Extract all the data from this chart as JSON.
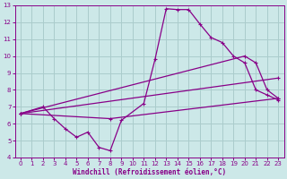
{
  "xlabel": "Windchill (Refroidissement éolien,°C)",
  "xlim": [
    -0.5,
    23.5
  ],
  "ylim": [
    4,
    13
  ],
  "xticks": [
    0,
    1,
    2,
    3,
    4,
    5,
    6,
    7,
    8,
    9,
    10,
    11,
    12,
    13,
    14,
    15,
    16,
    17,
    18,
    19,
    20,
    21,
    22,
    23
  ],
  "yticks": [
    4,
    5,
    6,
    7,
    8,
    9,
    10,
    11,
    12,
    13
  ],
  "background_color": "#cce8e8",
  "grid_color": "#aacccc",
  "line_color": "#880088",
  "lines": [
    {
      "x": [
        0,
        2,
        3,
        4,
        5,
        6,
        7,
        8,
        9,
        11,
        12,
        13,
        14,
        15,
        16,
        17,
        18,
        19,
        20,
        21,
        22,
        23
      ],
      "y": [
        6.6,
        7.0,
        6.3,
        5.7,
        5.2,
        5.5,
        4.6,
        4.4,
        6.2,
        7.2,
        9.8,
        12.8,
        12.75,
        12.75,
        11.9,
        11.1,
        10.8,
        10.0,
        9.6,
        8.0,
        7.7,
        7.4
      ]
    },
    {
      "x": [
        0,
        20,
        21,
        22,
        23
      ],
      "y": [
        6.6,
        10.0,
        9.6,
        8.0,
        7.5
      ]
    },
    {
      "x": [
        0,
        23
      ],
      "y": [
        6.6,
        8.7
      ]
    },
    {
      "x": [
        0,
        8,
        23
      ],
      "y": [
        6.6,
        6.3,
        7.5
      ]
    }
  ]
}
